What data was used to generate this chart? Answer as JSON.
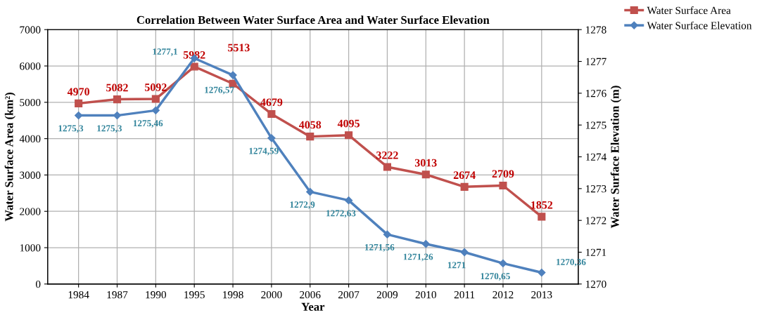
{
  "chart_data": {
    "type": "line",
    "title": "Correlation Between Water Surface Area and Water Surface Elevation",
    "xlabel": "Year",
    "ylabel": "Water Surface Area (km²)",
    "y2label": "Water Surface Elevation (m)",
    "categories": [
      "1984",
      "1987",
      "1990",
      "1995",
      "1998",
      "2000",
      "2006",
      "2007",
      "2009",
      "2010",
      "2011",
      "2012",
      "2013"
    ],
    "series": [
      {
        "name": "Water Surface Area",
        "color": "#c0504d",
        "marker": "square",
        "values": [
          4970,
          5082,
          5092,
          5982,
          5513,
          4679,
          4058,
          4095,
          3222,
          3013,
          2674,
          2709,
          1852
        ],
        "value_labels": [
          "4970",
          "5082",
          "5092",
          "5982",
          "5513",
          "4679",
          "4058",
          "4095",
          "3222",
          "3013",
          "2674",
          "2709",
          "1852"
        ]
      },
      {
        "name": "Water Surface Elevation",
        "color": "#4f81bd",
        "marker": "diamond",
        "axis": "y2",
        "values": [
          1275.3,
          1275.3,
          1275.46,
          1277.1,
          1276.57,
          1274.59,
          1272.9,
          1272.63,
          1271.56,
          1271.26,
          1271,
          1270.65,
          1270.36
        ],
        "value_labels": [
          "1275,3",
          "1275,3",
          "1275,46",
          "1277,1",
          "1276,57",
          "1274,59",
          "1272,9",
          "1272,63",
          "1271,56",
          "1271,26",
          "1271",
          "1270,65",
          "1270,36"
        ]
      }
    ],
    "ylim": [
      0,
      7000
    ],
    "yticks": [
      0,
      1000,
      2000,
      3000,
      4000,
      5000,
      6000,
      7000
    ],
    "y2lim": [
      1270,
      1278
    ],
    "y2ticks": [
      1270,
      1271,
      1272,
      1273,
      1274,
      1275,
      1276,
      1277,
      1278
    ],
    "grid": true,
    "legend": "top right"
  }
}
